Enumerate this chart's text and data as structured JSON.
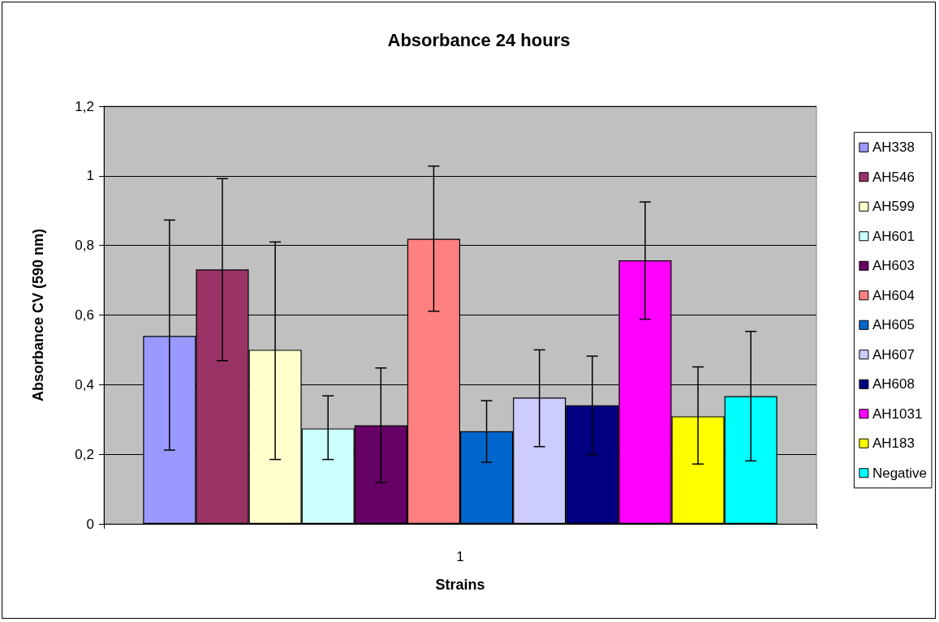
{
  "chart_data": {
    "type": "bar",
    "title": "Absorbance 24 hours",
    "xlabel": "Strains",
    "ylabel": "Absorbance CV (590 nm)",
    "categories": [
      "1"
    ],
    "ylim": [
      0,
      1.2
    ],
    "yticks": [
      0,
      {
        "value": 0.2,
        "label": "0,2"
      },
      {
        "value": 0.4,
        "label": "0,4"
      },
      {
        "value": 0.6,
        "label": "0,6"
      },
      {
        "value": 0.8,
        "label": "0,8"
      },
      1,
      {
        "value": 1.2,
        "label": "1,2"
      }
    ],
    "grid": "y",
    "legend": "right",
    "series": [
      {
        "name": "AH338",
        "color": "#9999ff",
        "values": [
          0.54
        ],
        "errors": [
          [
            0.212,
            0.873
          ]
        ]
      },
      {
        "name": "AH546",
        "color": "#993366",
        "values": [
          0.731
        ],
        "errors": [
          [
            0.469,
            0.992
          ]
        ]
      },
      {
        "name": "AH599",
        "color": "#ffffcc",
        "values": [
          0.5
        ],
        "errors": [
          [
            0.185,
            0.81
          ]
        ]
      },
      {
        "name": "AH601",
        "color": "#ccffff",
        "values": [
          0.274
        ],
        "errors": [
          [
            0.185,
            0.368
          ]
        ]
      },
      {
        "name": "AH603",
        "color": "#660066",
        "values": [
          0.283
        ],
        "errors": [
          [
            0.119,
            0.448
          ]
        ]
      },
      {
        "name": "AH604",
        "color": "#ff8080",
        "values": [
          0.819
        ],
        "errors": [
          [
            0.611,
            1.028
          ]
        ]
      },
      {
        "name": "AH605",
        "color": "#0066cc",
        "values": [
          0.266
        ],
        "errors": [
          [
            0.177,
            0.354
          ]
        ]
      },
      {
        "name": "AH607",
        "color": "#ccccff",
        "values": [
          0.363
        ],
        "errors": [
          [
            0.222,
            0.5
          ]
        ]
      },
      {
        "name": "AH608",
        "color": "#000080",
        "values": [
          0.341
        ],
        "errors": [
          [
            0.199,
            0.482
          ]
        ]
      },
      {
        "name": "AH1031",
        "color": "#ff00ff",
        "values": [
          0.757
        ],
        "errors": [
          [
            0.588,
            0.925
          ]
        ]
      },
      {
        "name": "AH183",
        "color": "#ffff00",
        "values": [
          0.309
        ],
        "errors": [
          [
            0.172,
            0.451
          ]
        ]
      },
      {
        "name": "Negative",
        "color": "#00ffff",
        "values": [
          0.367
        ],
        "errors": [
          [
            0.181,
            0.553
          ]
        ]
      }
    ]
  }
}
